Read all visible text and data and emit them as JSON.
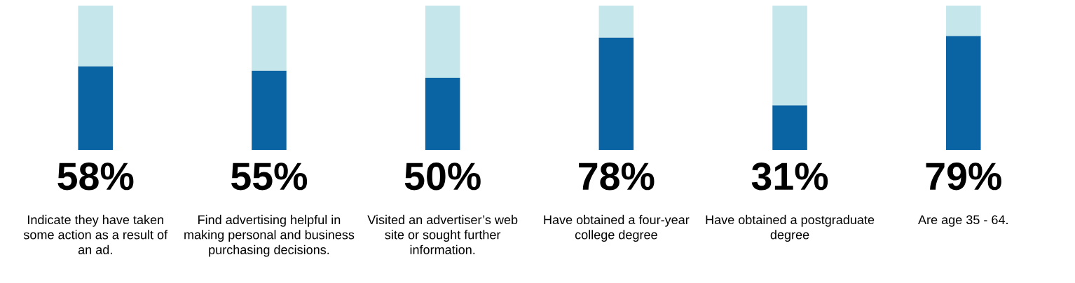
{
  "chart_data": {
    "type": "bar",
    "stacked": true,
    "categories": [
      "Indicate they have taken some action as a result of an ad.",
      "Find advertising helpful in making personal and business purchasing decisions.",
      "Visited an advertiser’s web site or sought further information.",
      "Have obtained a four-year college degree",
      "Have obtained a postgraduate degree",
      "Are age 35 - 64."
    ],
    "series": [
      {
        "color": "#0a64a4",
        "values": [
          58,
          55,
          50,
          78,
          31,
          79
        ],
        "value_labels": [
          "58%",
          "55%",
          "50%",
          "78%",
          "31%",
          "79%"
        ]
      },
      {
        "color": "#c5e6ea",
        "values": [
          42,
          45,
          50,
          22,
          69,
          21
        ]
      }
    ]
  }
}
